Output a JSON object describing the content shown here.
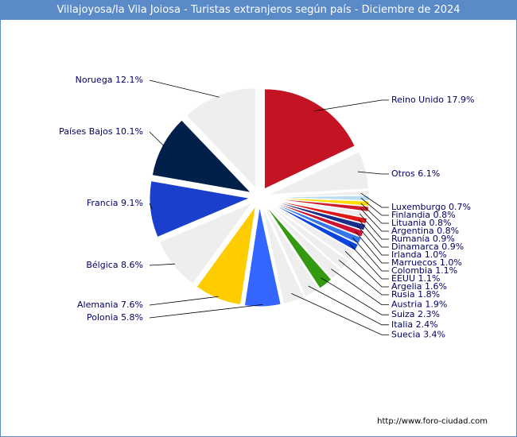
{
  "chart_data": {
    "type": "pie",
    "title": "Villajoyosa/la Vila Joiosa - Turistas extranjeros según país - Diciembre de 2024",
    "unit": "%",
    "slices": [
      {
        "name": "Reino Unido",
        "value": 17.9,
        "label": "Reino Unido 17.9%",
        "color": "#c41424",
        "side": "right"
      },
      {
        "name": "Otros",
        "value": 6.1,
        "label": "Otros 6.1%",
        "color": "#eeeeee",
        "side": "right"
      },
      {
        "name": "Luxemburgo",
        "value": 0.7,
        "label": "Luxemburgo 0.7%",
        "color": "#eeeeee",
        "side": "right"
      },
      {
        "name": "Finlandia",
        "value": 0.8,
        "label": "Finlandia 0.8%",
        "color": "#b8dcf4",
        "side": "right"
      },
      {
        "name": "Lituania",
        "value": 0.8,
        "label": "Lituania 0.8%",
        "color": "#ffdd00",
        "side": "right"
      },
      {
        "name": "Argentina",
        "value": 0.8,
        "label": "Argentina 0.8%",
        "color": "#d01c2a",
        "side": "right"
      },
      {
        "name": "Rumanía",
        "value": 0.9,
        "label": "Rumanía 0.9%",
        "color": "#eeeeee",
        "side": "right"
      },
      {
        "name": "Dinamarca",
        "value": 0.9,
        "label": "Dinamarca 0.9%",
        "color": "#e01818",
        "side": "right"
      },
      {
        "name": "Irlanda",
        "value": 1.0,
        "label": "Irlanda 1.0%",
        "color": "#1a2f8c",
        "side": "right"
      },
      {
        "name": "Marruecos",
        "value": 1.0,
        "label": "Marruecos 1.0%",
        "color": "#cc1133",
        "side": "right"
      },
      {
        "name": "Colombia",
        "value": 1.1,
        "label": "Colombia 1.1%",
        "color": "#3377ee",
        "side": "right"
      },
      {
        "name": "EEUU",
        "value": 1.1,
        "label": "EEUU 1.1%",
        "color": "#0a45dd",
        "side": "right"
      },
      {
        "name": "Argelia",
        "value": 1.6,
        "label": "Argelia 1.6%",
        "color": "#eeeeee",
        "side": "right"
      },
      {
        "name": "Rusia",
        "value": 1.8,
        "label": "Rusia 1.8%",
        "color": "#eeeeee",
        "side": "right"
      },
      {
        "name": "Austria",
        "value": 1.9,
        "label": "Austria 1.9%",
        "color": "#eeeeee",
        "side": "right"
      },
      {
        "name": "Suiza",
        "value": 2.3,
        "label": "Suiza 2.3%",
        "color": "#339911",
        "side": "right"
      },
      {
        "name": "Italia",
        "value": 2.4,
        "label": "Italia 2.4%",
        "color": "#eeeeee",
        "side": "right"
      },
      {
        "name": "Suecia",
        "value": 3.4,
        "label": "Suecia 3.4%",
        "color": "#eeeeee",
        "side": "right"
      },
      {
        "name": "Polonia",
        "value": 5.8,
        "label": "Polonia 5.8%",
        "color": "#3366ff",
        "side": "left"
      },
      {
        "name": "Alemania",
        "value": 7.6,
        "label": "Alemania 7.6%",
        "color": "#ffcc00",
        "side": "left"
      },
      {
        "name": "Bélgica",
        "value": 8.6,
        "label": "Bélgica 8.6%",
        "color": "#eeeeee",
        "side": "left"
      },
      {
        "name": "Francia",
        "value": 9.1,
        "label": "Francia 9.1%",
        "color": "#1a3fcc",
        "side": "left"
      },
      {
        "name": "Países Bajos",
        "value": 10.1,
        "label": "Países Bajos 10.1%",
        "color": "#00204a",
        "side": "left"
      },
      {
        "name": "Noruega",
        "value": 12.1,
        "label": "Noruega 12.1%",
        "color": "#eeeeee",
        "side": "left"
      }
    ]
  },
  "credit": "http://www.foro-ciudad.com"
}
